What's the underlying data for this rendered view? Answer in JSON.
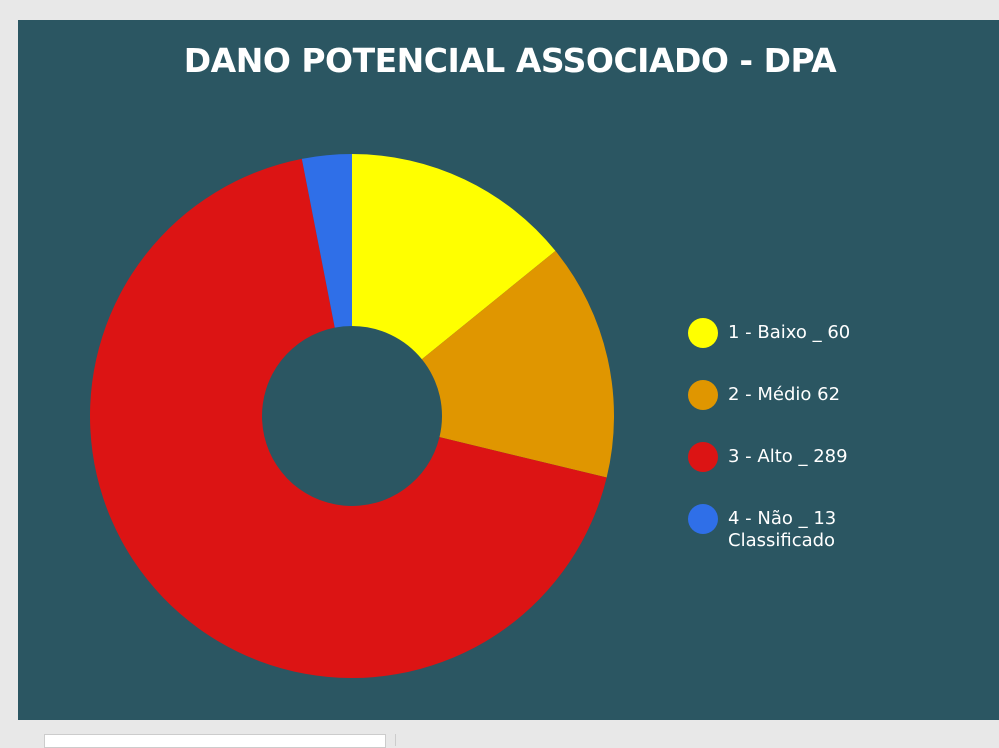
{
  "chart_data": {
    "type": "donut",
    "title": "DANO POTENCIAL ASSOCIADO - DPA",
    "categories": [
      "1 - Baixo _  60",
      "2 - Médio 62",
      "3 - Alto _ 289",
      "4 - Não _ 13 Classificado"
    ],
    "values": [
      60,
      62,
      289,
      13
    ],
    "colors": [
      "#ffff00",
      "#e09600",
      "#dc1414",
      "#2f6fe8"
    ],
    "legend": "right"
  }
}
